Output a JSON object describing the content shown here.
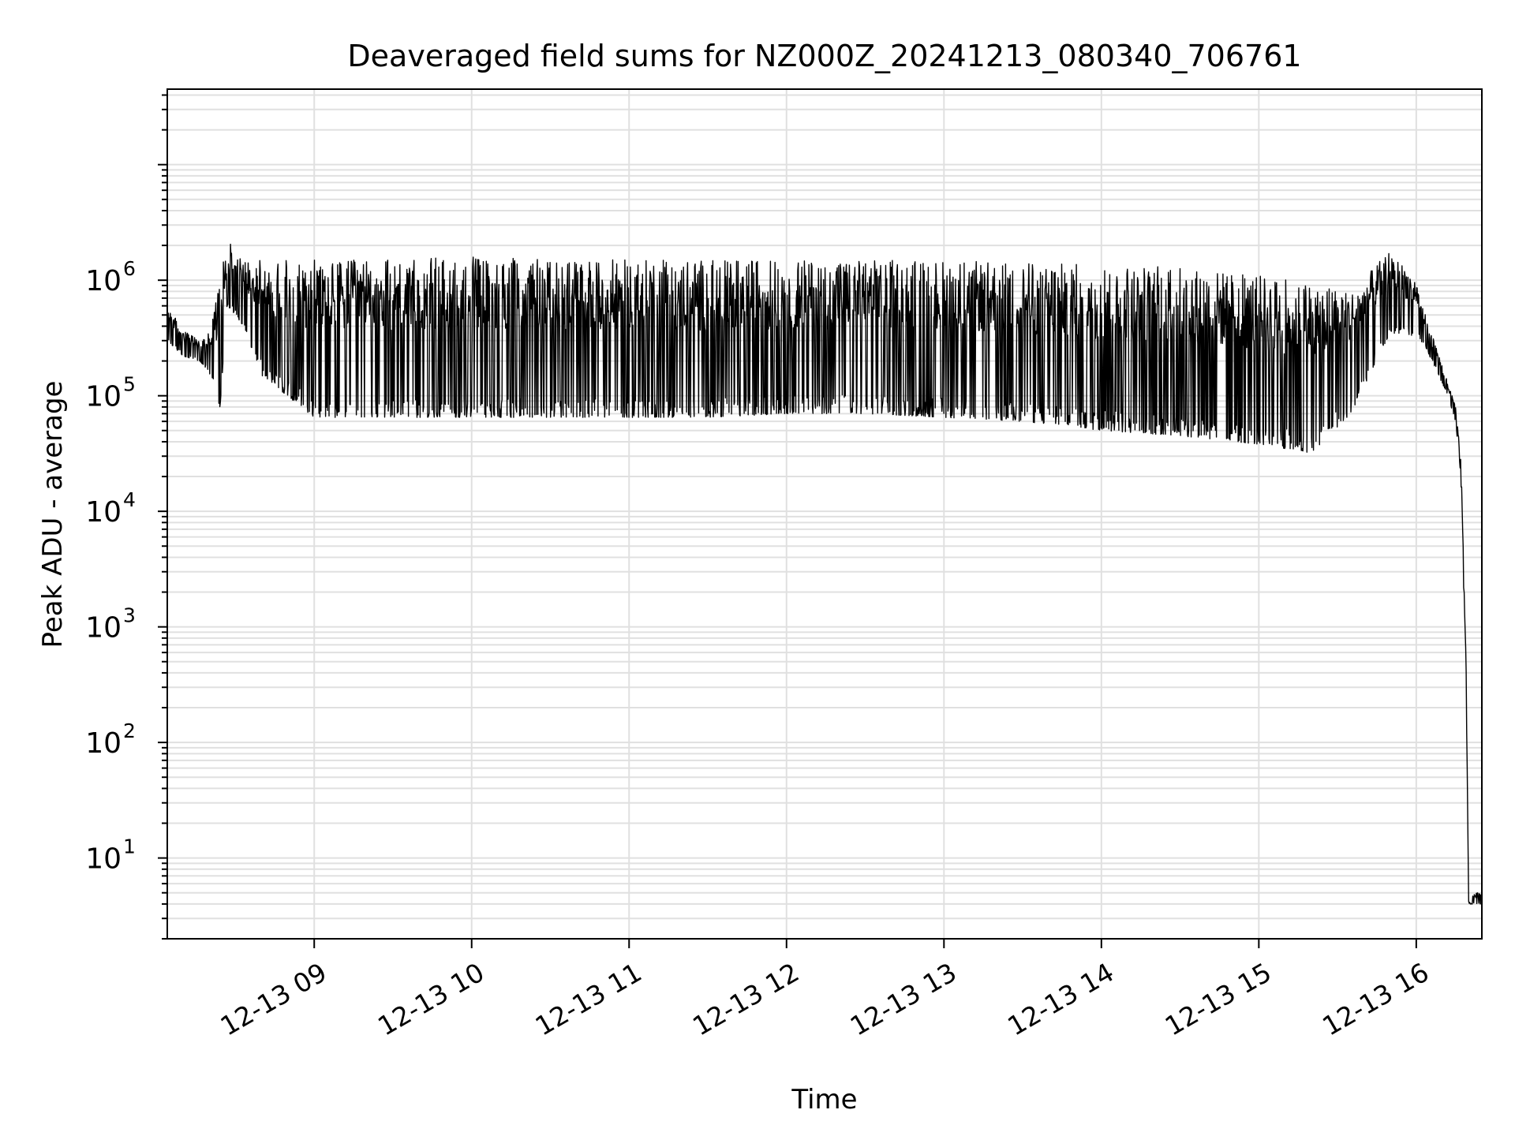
{
  "chart_data": {
    "type": "line",
    "title": "Deaveraged field sums for NZ000Z_20241213_080340_706761",
    "xlabel": "Time",
    "ylabel": "Peak ADU - average",
    "y_scale": "log",
    "ylim": [
      2,
      45000000
    ],
    "xlim": [
      "2024-12-13 08:04",
      "2024-12-13 16:25"
    ],
    "x_ticks": [
      {
        "t": "2024-12-13 09:00",
        "label": "12-13 09"
      },
      {
        "t": "2024-12-13 10:00",
        "label": "12-13 10"
      },
      {
        "t": "2024-12-13 11:00",
        "label": "12-13 11"
      },
      {
        "t": "2024-12-13 12:00",
        "label": "12-13 12"
      },
      {
        "t": "2024-12-13 13:00",
        "label": "12-13 13"
      },
      {
        "t": "2024-12-13 14:00",
        "label": "12-13 14"
      },
      {
        "t": "2024-12-13 15:00",
        "label": "12-13 15"
      },
      {
        "t": "2024-12-13 16:00",
        "label": "12-13 16"
      }
    ],
    "y_ticks": [
      {
        "value": 10,
        "base": "10",
        "exp": "1"
      },
      {
        "value": 100,
        "base": "10",
        "exp": "2"
      },
      {
        "value": 1000,
        "base": "10",
        "exp": "3"
      },
      {
        "value": 10000,
        "base": "10",
        "exp": "4"
      },
      {
        "value": 100000,
        "base": "10",
        "exp": "5"
      },
      {
        "value": 1000000,
        "base": "10",
        "exp": "6"
      }
    ],
    "grid": true,
    "line_color": "#000000",
    "grid_color": "#e0e0e0",
    "series": [
      {
        "x": [
          "2024-12-13 08:04",
          "2024-12-13 08:10",
          "2024-12-13 08:16",
          "2024-12-13 08:20",
          "2024-12-13 08:24",
          "2024-12-13 08:27",
          "2024-12-13 08:30",
          "2024-12-13 08:33",
          "2024-12-13 08:40",
          "2024-12-13 09:00",
          "2024-12-13 09:30",
          "2024-12-13 10:00",
          "2024-12-13 10:30",
          "2024-12-13 11:00",
          "2024-12-13 11:30",
          "2024-12-13 12:00",
          "2024-12-13 12:30",
          "2024-12-13 13:00",
          "2024-12-13 13:30",
          "2024-12-13 14:00",
          "2024-12-13 14:30",
          "2024-12-13 15:00",
          "2024-12-13 15:20",
          "2024-12-13 15:35",
          "2024-12-13 15:50",
          "2024-12-13 16:00",
          "2024-12-13 16:04",
          "2024-12-13 16:08",
          "2024-12-13 16:12",
          "2024-12-13 16:15",
          "2024-12-13 16:17",
          "2024-12-13 16:19",
          "2024-12-13 16:20",
          "2024-12-13 16:22",
          "2024-12-13 16:25"
        ],
        "lo": [
          300000,
          220000,
          200000,
          160000,
          75000,
          600000,
          500000,
          400000,
          150000,
          65000,
          65000,
          65000,
          65000,
          65000,
          65000,
          70000,
          70000,
          65000,
          60000,
          50000,
          45000,
          38000,
          32000,
          70000,
          350000,
          330000,
          250000,
          160000,
          100000,
          60000,
          20000,
          300,
          4,
          4,
          4
        ],
        "hi": [
          600000,
          380000,
          300000,
          350000,
          1000000,
          2200000,
          1900000,
          1500000,
          1500000,
          1500000,
          1500000,
          1600000,
          1500000,
          1500000,
          1500000,
          1500000,
          1500000,
          1500000,
          1400000,
          1400000,
          1300000,
          1100000,
          950000,
          800000,
          1800000,
          1000000,
          450000,
          250000,
          130000,
          80000,
          30000,
          500,
          4,
          5,
          5
        ]
      }
    ]
  }
}
